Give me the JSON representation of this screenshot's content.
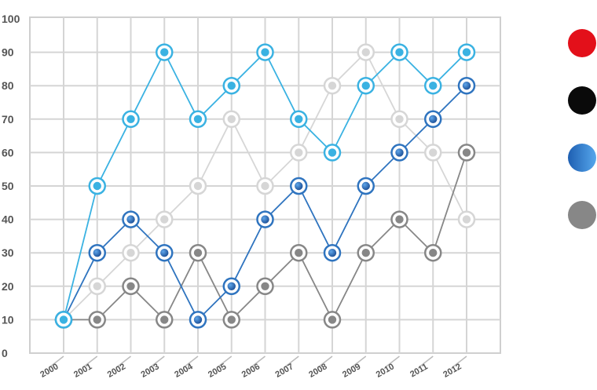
{
  "chart_data": {
    "type": "line",
    "x": [
      "2000",
      "2001",
      "2002",
      "2003",
      "2004",
      "2005",
      "2006",
      "2007",
      "2008",
      "2009",
      "2010",
      "2011",
      "2012"
    ],
    "ylim": [
      0,
      100
    ],
    "yticks": [
      "0",
      "10",
      "20",
      "30",
      "40",
      "50",
      "60",
      "70",
      "80",
      "90",
      "100"
    ],
    "grid": true,
    "legend": "right",
    "series": [
      {
        "color": "#d6d6d6",
        "values": [
          10,
          20,
          30,
          40,
          50,
          70,
          50,
          60,
          80,
          90,
          70,
          60,
          40
        ]
      },
      {
        "color": "#878787",
        "values": [
          10,
          10,
          20,
          10,
          30,
          10,
          20,
          30,
          10,
          30,
          40,
          30,
          60
        ]
      },
      {
        "color": "#2f74bf",
        "values": [
          10,
          30,
          40,
          30,
          10,
          20,
          40,
          50,
          30,
          50,
          60,
          70,
          80
        ]
      },
      {
        "color": "#3ab2e2",
        "values": [
          10,
          50,
          70,
          90,
          70,
          80,
          90,
          70,
          60,
          80,
          90,
          80,
          90
        ]
      }
    ],
    "legend_swatches": [
      {
        "color": "#e3101a"
      },
      {
        "color": "#0a0a0a"
      },
      {
        "color": "#2f74bf"
      },
      {
        "color": "#878787"
      }
    ]
  }
}
